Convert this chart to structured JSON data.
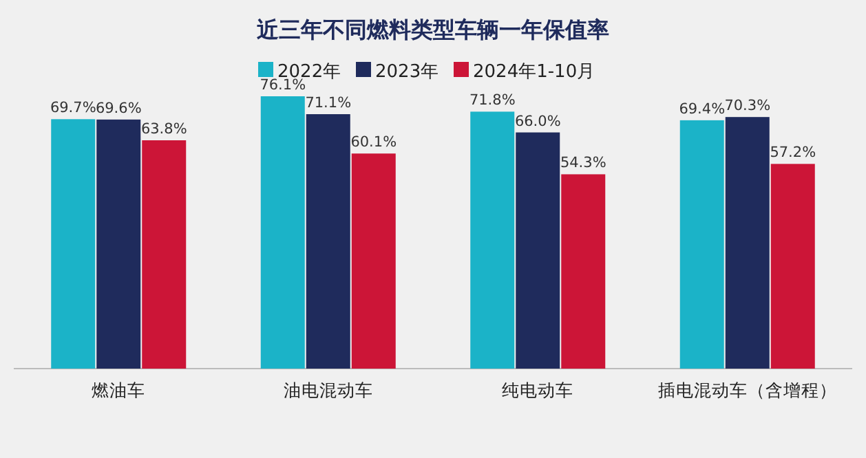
{
  "chart_data": {
    "type": "bar",
    "title": "近三年不同燃料类型车辆一年保值率",
    "categories": [
      "燃油车",
      "油电混动车",
      "纯电动车",
      "插电混动车（含增程）"
    ],
    "series": [
      {
        "name": "2022年",
        "color": "#1bb3c8",
        "values": [
          69.7,
          76.1,
          71.8,
          69.4
        ],
        "value_labels": [
          "69.7%",
          "76.1%",
          "71.8%",
          "69.4%"
        ]
      },
      {
        "name": "2023年",
        "color": "#1f2b5c",
        "values": [
          69.6,
          71.1,
          66.0,
          70.3
        ],
        "value_labels": [
          "69.6%",
          "71.1%",
          "66.0%",
          "70.3%"
        ]
      },
      {
        "name": "2024年1-10月",
        "color": "#cc1537",
        "values": [
          63.8,
          60.1,
          54.3,
          57.2
        ],
        "value_labels": [
          "63.8%",
          "60.1%",
          "54.3%",
          "57.2%"
        ]
      }
    ],
    "legend": "top"
  }
}
